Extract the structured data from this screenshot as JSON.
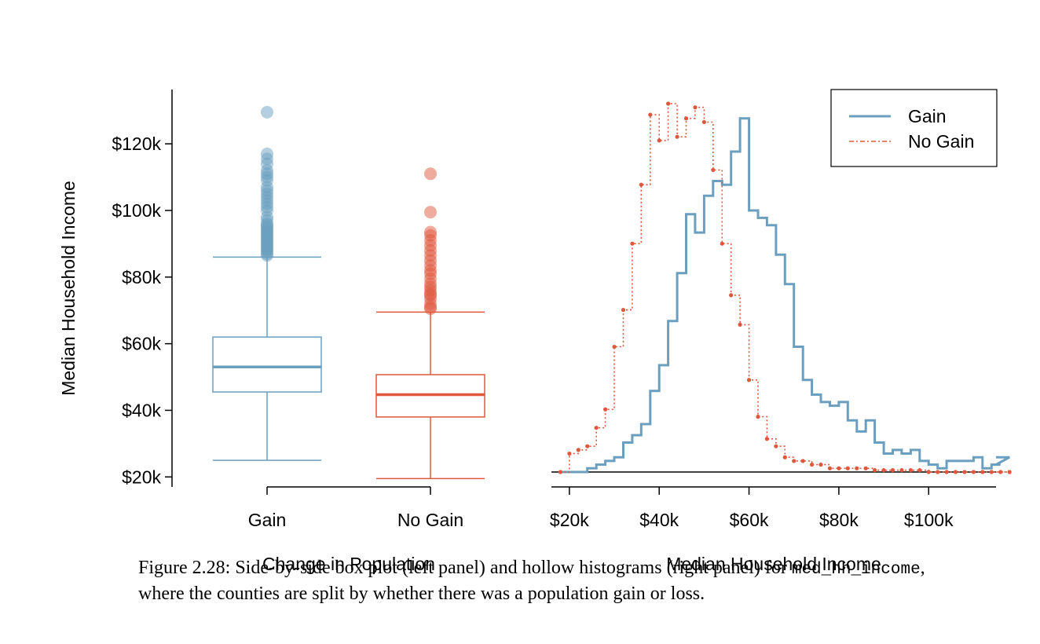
{
  "colors": {
    "gain": "#6a9fbf",
    "no_gain": "#e0573d",
    "gain_point": "#6a9fbf",
    "no_gain_point": "#e0573d"
  },
  "chart_data": [
    {
      "type": "box",
      "title": "",
      "xlabel": "Change in Population",
      "ylabel": "Median Household Income",
      "ylim": [
        17000,
        133000
      ],
      "yticks": [
        20000,
        40000,
        60000,
        80000,
        100000,
        120000
      ],
      "ytick_labels": [
        "$20k",
        "$40k",
        "$60k",
        "$80k",
        "$100k",
        "$120k"
      ],
      "categories": [
        "Gain",
        "No Gain"
      ],
      "boxes": [
        {
          "name": "Gain",
          "whisker_low": 25000,
          "q1": 45500,
          "median": 53000,
          "q3": 62000,
          "whisker_high": 86000,
          "outliers": [
            86500,
            87000,
            87500,
            88000,
            88500,
            89000,
            89500,
            90000,
            90500,
            91000,
            91500,
            92000,
            92500,
            93000,
            93500,
            94000,
            94500,
            95000,
            95500,
            96000,
            97000,
            98000,
            100000,
            101000,
            102000,
            103000,
            104000,
            105000,
            106000,
            107000,
            109000,
            110000,
            111000,
            112000,
            114000,
            115500,
            117000,
            129500
          ]
        },
        {
          "name": "No Gain",
          "whisker_low": 19500,
          "q1": 38000,
          "median": 44700,
          "q3": 50700,
          "whisker_high": 69500,
          "outliers": [
            70500,
            71000,
            72000,
            73500,
            74500,
            75000,
            76000,
            77000,
            78000,
            79500,
            81000,
            82000,
            83500,
            85000,
            86500,
            88000,
            89500,
            91000,
            92500,
            93500,
            99500,
            111000
          ]
        }
      ]
    },
    {
      "type": "histogram",
      "title": "",
      "xlabel": "Median Household Income",
      "ylabel": "",
      "xlim": [
        16000,
        115000
      ],
      "xticks": [
        20000,
        40000,
        60000,
        80000,
        100000
      ],
      "xtick_labels": [
        "$20k",
        "$40k",
        "$60k",
        "$80k",
        "$100k"
      ],
      "bin_start": 18000,
      "bin_width": 2000,
      "ylim": [
        0,
        1.0
      ],
      "legend": {
        "position": "top-right",
        "entries": [
          "Gain",
          "No Gain"
        ]
      },
      "series": [
        {
          "name": "Gain",
          "style": "solid",
          "values": [
            0,
            0,
            0,
            0.01,
            0.02,
            0.03,
            0.04,
            0.08,
            0.1,
            0.13,
            0.22,
            0.29,
            0.41,
            0.54,
            0.7,
            0.65,
            0.75,
            0.79,
            0.78,
            0.87,
            0.96,
            0.71,
            0.69,
            0.67,
            0.59,
            0.51,
            0.34,
            0.25,
            0.21,
            0.19,
            0.18,
            0.19,
            0.14,
            0.11,
            0.14,
            0.08,
            0.05,
            0.06,
            0.05,
            0.06,
            0.03,
            0.02,
            0.01,
            0.03,
            0.03,
            0.03,
            0.04,
            0.01,
            0.02,
            0.02,
            0.04
          ]
        },
        {
          "name": "No Gain",
          "style": "dotted",
          "values": [
            0,
            0.05,
            0.06,
            0.07,
            0.12,
            0.17,
            0.34,
            0.44,
            0.62,
            0.78,
            0.97,
            0.9,
            1.0,
            0.91,
            0.96,
            0.99,
            0.95,
            0.82,
            0.62,
            0.48,
            0.4,
            0.25,
            0.15,
            0.09,
            0.07,
            0.04,
            0.03,
            0.03,
            0.02,
            0.02,
            0.01,
            0.01,
            0.01,
            0.01,
            0.01,
            0.005,
            0.005,
            0.005,
            0.005,
            0.005,
            0.005,
            0,
            0,
            0,
            0,
            0,
            0,
            0,
            0,
            0,
            0
          ]
        }
      ]
    }
  ],
  "caption": {
    "lead": "Figure 2.28: Side-by-side box plot (left panel) and hollow histograms (right panel) for ",
    "code": "med_hh_income",
    "rest": ", where the counties are split by whether there was a population gain or loss."
  }
}
